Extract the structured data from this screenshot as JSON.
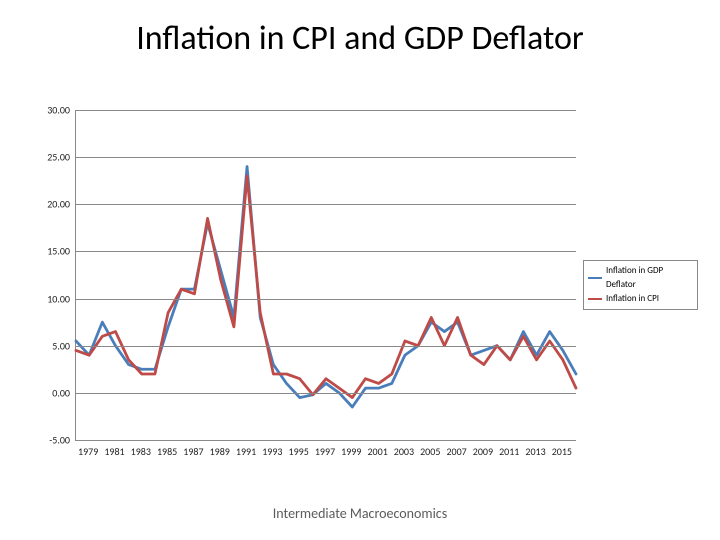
{
  "title": "Inflation in CPI and GDP Deflator",
  "footer": "Intermediate Macroeconomics",
  "chart": {
    "type": "line",
    "background_color": "#ffffff",
    "grid_color": "#888888",
    "axis_color": "#888888",
    "title_fontsize": 34,
    "label_fontsize": 10,
    "ylim": [
      -5,
      30
    ],
    "ytick_step": 5,
    "y_ticks": [
      -5.0,
      0.0,
      5.0,
      10.0,
      15.0,
      20.0,
      25.0,
      30.0
    ],
    "y_tick_labels": [
      "-5.00",
      "0.00",
      "5.00",
      "10.00",
      "15.00",
      "20.00",
      "25.00",
      "30.00"
    ],
    "xlim": [
      1978,
      2016
    ],
    "x_tick_step": 2,
    "x_ticks": [
      1979,
      1981,
      1983,
      1985,
      1987,
      1989,
      1991,
      1993,
      1995,
      1997,
      1999,
      2001,
      2003,
      2005,
      2007,
      2009,
      2011,
      2013,
      2015
    ],
    "line_width": 2.8,
    "legend": {
      "position": "right",
      "border_color": "#888888",
      "items": [
        {
          "label": "Inflation in GDP Deflator",
          "color": "#4a7ebb"
        },
        {
          "label": "Inflation in CPI",
          "color": "#be4b48"
        }
      ]
    },
    "series": [
      {
        "name": "Inflation in GDP Deflator",
        "color": "#4a7ebb",
        "x": [
          1978,
          1979,
          1980,
          1981,
          1982,
          1983,
          1984,
          1985,
          1986,
          1987,
          1988,
          1989,
          1990,
          1991,
          1992,
          1993,
          1994,
          1995,
          1996,
          1997,
          1998,
          1999,
          2000,
          2001,
          2002,
          2003,
          2004,
          2005,
          2006,
          2007,
          2008,
          2009,
          2010,
          2011,
          2012,
          2013,
          2014,
          2015,
          2016
        ],
        "y": [
          5.5,
          4.0,
          7.5,
          5.0,
          3.0,
          2.5,
          2.5,
          7.0,
          11.0,
          11.0,
          18.0,
          13.0,
          8.0,
          24.0,
          8.0,
          3.0,
          1.0,
          -0.5,
          -0.2,
          1.0,
          0.0,
          -1.5,
          0.5,
          0.5,
          1.0,
          4.0,
          5.0,
          7.5,
          6.5,
          7.5,
          4.0,
          4.5,
          5.0,
          3.5,
          6.5,
          4.0,
          6.5,
          4.5,
          2.0
        ]
      },
      {
        "name": "Inflation in CPI",
        "color": "#be4b48",
        "x": [
          1978,
          1979,
          1980,
          1981,
          1982,
          1983,
          1984,
          1985,
          1986,
          1987,
          1988,
          1989,
          1990,
          1991,
          1992,
          1993,
          1994,
          1995,
          1996,
          1997,
          1998,
          1999,
          2000,
          2001,
          2002,
          2003,
          2004,
          2005,
          2006,
          2007,
          2008,
          2009,
          2010,
          2011,
          2012,
          2013,
          2014,
          2015,
          2016
        ],
        "y": [
          4.5,
          4.0,
          6.0,
          6.5,
          3.5,
          2.0,
          2.0,
          8.5,
          11.0,
          10.5,
          18.5,
          12.0,
          7.0,
          23.0,
          8.5,
          2.0,
          2.0,
          1.5,
          -0.2,
          1.5,
          0.5,
          -0.5,
          1.5,
          1.0,
          2.0,
          5.5,
          5.0,
          8.0,
          5.0,
          8.0,
          4.0,
          3.0,
          5.0,
          3.5,
          6.0,
          3.5,
          5.5,
          3.5,
          0.5
        ]
      }
    ]
  }
}
